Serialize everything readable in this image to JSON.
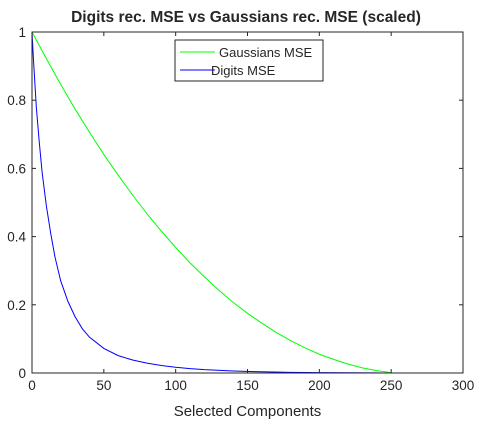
{
  "chart_data": {
    "type": "line",
    "title": "Digits rec. MSE vs Gaussians rec. MSE (scaled)",
    "xlabel": "Selected Components",
    "ylabel": "",
    "xlim": [
      0,
      300
    ],
    "ylim": [
      0,
      1
    ],
    "xticks": [
      0,
      50,
      100,
      150,
      200,
      250,
      300
    ],
    "yticks": [
      0,
      0.2,
      0.4,
      0.6,
      0.8,
      1
    ],
    "xtick_labels": [
      "0",
      "50",
      "100",
      "150",
      "200",
      "250",
      "300"
    ],
    "ytick_labels": [
      "0",
      "0.2",
      "0.4",
      "0.6",
      "0.8",
      "1"
    ],
    "grid": false,
    "legend_position": "top-center",
    "series": [
      {
        "name": "Gaussians MSE",
        "color": "#00ff00",
        "x": [
          0,
          10,
          20,
          30,
          40,
          50,
          60,
          70,
          80,
          90,
          100,
          110,
          120,
          130,
          140,
          150,
          160,
          170,
          180,
          190,
          200,
          210,
          220,
          230,
          240,
          250
        ],
        "y": [
          1.0,
          0.922,
          0.846,
          0.774,
          0.706,
          0.641,
          0.58,
          0.522,
          0.467,
          0.416,
          0.368,
          0.323,
          0.282,
          0.243,
          0.207,
          0.175,
          0.146,
          0.119,
          0.095,
          0.074,
          0.055,
          0.04,
          0.026,
          0.015,
          0.007,
          0.001
        ]
      },
      {
        "name": "Digits MSE",
        "color": "#0000ff",
        "x": [
          0,
          1,
          2,
          3,
          5,
          7,
          10,
          13,
          16,
          20,
          25,
          30,
          35,
          40,
          50,
          60,
          70,
          80,
          90,
          100,
          110,
          120,
          140,
          160,
          180,
          200,
          220,
          240,
          252
        ],
        "y": [
          1.0,
          0.92,
          0.85,
          0.78,
          0.68,
          0.59,
          0.49,
          0.41,
          0.34,
          0.27,
          0.21,
          0.165,
          0.13,
          0.105,
          0.072,
          0.051,
          0.038,
          0.029,
          0.022,
          0.017,
          0.013,
          0.01,
          0.006,
          0.0035,
          0.002,
          0.0012,
          0.0006,
          0.0002,
          0.0
        ]
      }
    ]
  }
}
